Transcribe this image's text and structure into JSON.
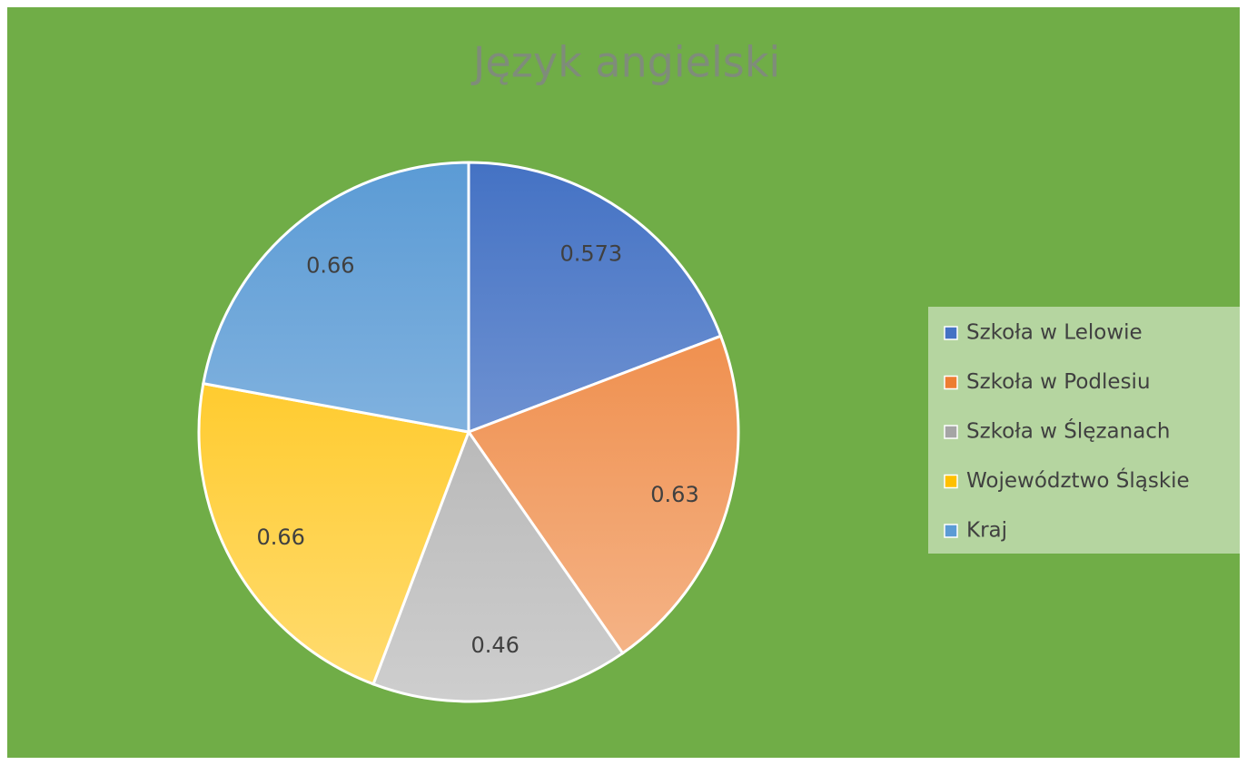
{
  "chart_data": {
    "type": "pie",
    "title": "Język angielski",
    "categories": [
      "Szkoła w Lelowie",
      "Szkoła w Podlesiu",
      "Szkoła w Ślęzanach",
      "Województwo Śląskie",
      "Kraj"
    ],
    "values": [
      0.573,
      0.63,
      0.46,
      0.66,
      0.66
    ],
    "colors": [
      "#4472c4",
      "#ed7d31",
      "#a5a5a5",
      "#ffc000",
      "#5b9bd5"
    ],
    "legend": "right"
  }
}
